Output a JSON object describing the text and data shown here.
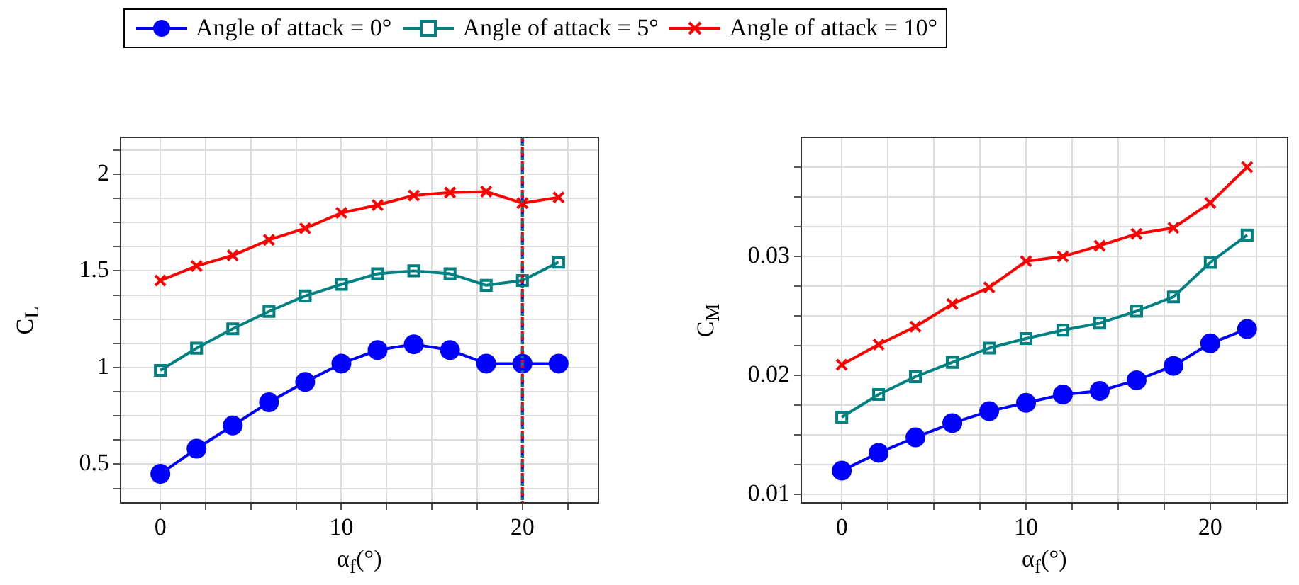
{
  "chart_data": [
    {
      "type": "line",
      "xlabel": "α$_{f}$(°)",
      "ylabel": "C$_{L}$",
      "x": [
        0,
        2,
        4,
        6,
        8,
        10,
        12,
        14,
        16,
        18,
        20,
        22
      ],
      "series": [
        {
          "name": "Angle of attack = 0°",
          "color": "#0000ff",
          "marker": "circle",
          "values": [
            0.45,
            0.58,
            0.7,
            0.82,
            0.925,
            1.02,
            1.09,
            1.12,
            1.09,
            1.02,
            1.02,
            1.02
          ]
        },
        {
          "name": "Angle of attack = 5°",
          "color": "#008080",
          "marker": "square",
          "values": [
            0.985,
            1.1,
            1.2,
            1.29,
            1.37,
            1.43,
            1.485,
            1.5,
            1.485,
            1.425,
            1.45,
            1.545
          ]
        },
        {
          "name": "Angle of attack = 10°",
          "color": "#ff0000",
          "marker": "cross",
          "values": [
            1.45,
            1.525,
            1.58,
            1.66,
            1.72,
            1.8,
            1.84,
            1.89,
            1.905,
            1.91,
            1.85,
            1.88
          ]
        }
      ],
      "xlim": [
        -2.2,
        24.2
      ],
      "ylim": [
        0.3,
        2.19
      ],
      "xticks": [
        0,
        {
          "value": 2.5,
          "label": null
        },
        {
          "value": 5,
          "label": null
        },
        {
          "value": 7.5,
          "label": null
        },
        10,
        {
          "value": 12.5,
          "label": null
        },
        {
          "value": 15,
          "label": null
        },
        {
          "value": 17.5,
          "label": null
        },
        20,
        {
          "value": 22.5,
          "label": null
        }
      ],
      "yticks": [
        {
          "value": 0.375,
          "label": null
        },
        0.5,
        {
          "value": 0.625,
          "label": null
        },
        {
          "value": 0.75,
          "label": null
        },
        {
          "value": 0.875,
          "label": null
        },
        1,
        {
          "value": 1.125,
          "label": null
        },
        {
          "value": 1.25,
          "label": null
        },
        {
          "value": 1.375,
          "label": null
        },
        1.5,
        {
          "value": 1.625,
          "label": null
        },
        {
          "value": 1.75,
          "label": null
        },
        {
          "value": 1.875,
          "label": null
        },
        2,
        {
          "value": 2.125,
          "label": null
        }
      ],
      "grid": true,
      "legend": "top",
      "line_style": "solid",
      "ref_lines": [
        {
          "axis": "x",
          "value": 20,
          "color": "#0000ff",
          "line_style": "dashed"
        },
        {
          "axis": "x",
          "value": 20,
          "color": "#ff0000",
          "line_style": "dashed"
        },
        {
          "axis": "x",
          "value": 20,
          "color": "#008080",
          "line_style": "dotted"
        }
      ]
    },
    {
      "type": "line",
      "xlabel": "α$_{f}$(°)",
      "ylabel": "C$_{M}$",
      "x": [
        0,
        2,
        4,
        6,
        8,
        10,
        12,
        14,
        16,
        18,
        20,
        22
      ],
      "series": [
        {
          "color": "#0000ff",
          "marker": "circle",
          "values": [
            0.012,
            0.0135,
            0.0148,
            0.016,
            0.017,
            0.0177,
            0.0184,
            0.0187,
            0.0196,
            0.0208,
            0.0227,
            0.0239
          ]
        },
        {
          "color": "#008080",
          "marker": "square",
          "values": [
            0.0165,
            0.0184,
            0.0199,
            0.0211,
            0.0223,
            0.0231,
            0.0238,
            0.0244,
            0.0254,
            0.0266,
            0.0295,
            0.0318
          ]
        },
        {
          "color": "#ff0000",
          "marker": "cross",
          "values": [
            0.0209,
            0.0226,
            0.0241,
            0.026,
            0.0274,
            0.0296,
            0.03,
            0.0309,
            0.0319,
            0.0324,
            0.0345,
            0.0375
          ]
        }
      ],
      "xlim": [
        -2.2,
        24.2
      ],
      "ylim": [
        0.0093,
        0.04
      ],
      "xticks": [
        0,
        {
          "value": 2.5,
          "label": null
        },
        {
          "value": 5,
          "label": null
        },
        {
          "value": 7.5,
          "label": null
        },
        10,
        {
          "value": 12.5,
          "label": null
        },
        {
          "value": 15,
          "label": null
        },
        {
          "value": 17.5,
          "label": null
        },
        20,
        {
          "value": 22.5,
          "label": null
        }
      ],
      "yticks": [
        0.01,
        {
          "value": 0.0125,
          "label": null
        },
        {
          "value": 0.015,
          "label": null
        },
        {
          "value": 0.0175,
          "label": null
        },
        0.02,
        {
          "value": 0.0225,
          "label": null
        },
        {
          "value": 0.025,
          "label": null
        },
        {
          "value": 0.0275,
          "label": null
        },
        0.03,
        {
          "value": 0.0325,
          "label": null
        },
        {
          "value": 0.035,
          "label": null
        },
        {
          "value": 0.0375,
          "label": null
        }
      ],
      "grid": true,
      "line_style": "solid"
    }
  ]
}
